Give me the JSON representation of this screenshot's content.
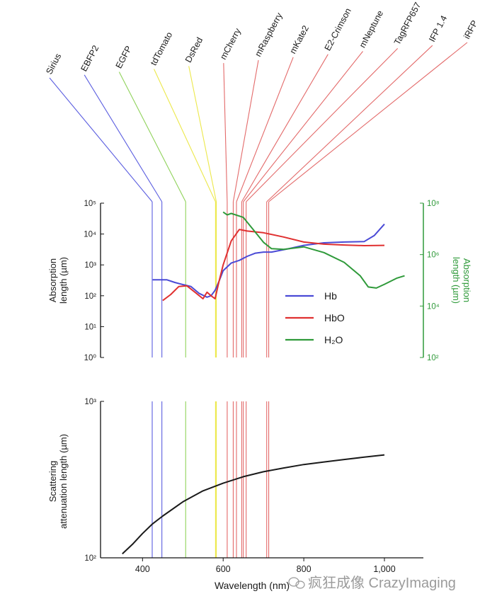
{
  "chart_data": [
    {
      "type": "line",
      "y_scale": "log",
      "ylabel_lines": [
        "Absorption",
        "length (µm)"
      ],
      "ylim": [
        1,
        100000
      ],
      "y_ticks": [
        {
          "v": 1,
          "label": "10⁰"
        },
        {
          "v": 10,
          "label": "10¹"
        },
        {
          "v": 100,
          "label": "10²"
        },
        {
          "v": 1000,
          "label": "10³"
        },
        {
          "v": 10000,
          "label": "10⁴"
        },
        {
          "v": 100000,
          "label": "10⁵"
        }
      ],
      "y2label_lines": [
        "Absorption",
        "length (µm)"
      ],
      "y2_scale": "log",
      "y2lim": [
        100,
        100000000
      ],
      "y2_ticks": [
        {
          "v": 100,
          "label": "10²"
        },
        {
          "v": 10000,
          "label": "10⁴"
        },
        {
          "v": 1000000,
          "label": "10⁶"
        },
        {
          "v": 100000000,
          "label": "10⁸"
        }
      ],
      "series": [
        {
          "name": "Hb",
          "color": "#4a4ad6",
          "axis": "left",
          "x": [
            425,
            445,
            460,
            480,
            500,
            520,
            540,
            560,
            570,
            580,
            590,
            600,
            620,
            640,
            660,
            680,
            700,
            720,
            760,
            800,
            850,
            900,
            950,
            975,
            1000
          ],
          "y": [
            330,
            330,
            330,
            270,
            230,
            200,
            120,
            90,
            100,
            150,
            300,
            650,
            1150,
            1400,
            1900,
            2400,
            2600,
            2600,
            3300,
            4300,
            5200,
            5500,
            5700,
            9000,
            21000
          ]
        },
        {
          "name": "HbO",
          "color": "#e03030",
          "axis": "left",
          "x": [
            450,
            470,
            490,
            510,
            530,
            550,
            560,
            570,
            580,
            590,
            600,
            620,
            640,
            660,
            700,
            750,
            800,
            850,
            900,
            950,
            1000
          ],
          "y": [
            70,
            110,
            200,
            210,
            130,
            80,
            130,
            100,
            80,
            300,
            1000,
            6000,
            14000,
            12500,
            11000,
            8000,
            5500,
            4700,
            4400,
            4200,
            4300
          ]
        },
        {
          "name": "H₂O",
          "color": "#2f9a3a",
          "axis": "right",
          "x": [
            600,
            610,
            620,
            650,
            700,
            720,
            750,
            800,
            850,
            900,
            940,
            960,
            980,
            1000,
            1030,
            1050
          ],
          "y": [
            45000000,
            35000000,
            40000000,
            28000000,
            3000000,
            1700000,
            1600000,
            2000000,
            1200000,
            500000,
            150000,
            55000,
            50000,
            70000,
            120000,
            150000
          ]
        }
      ]
    },
    {
      "type": "line",
      "y_scale": "log",
      "ylabel_lines": [
        "Scattering",
        "attenuation length (µm)"
      ],
      "ylim": [
        100,
        1000
      ],
      "y_ticks": [
        {
          "v": 100,
          "label": "10²"
        },
        {
          "v": 1000,
          "label": "10³"
        }
      ],
      "xlabel": "Wavelength (nm)",
      "x_ticks": [
        {
          "v": 400,
          "label": "400"
        },
        {
          "v": 600,
          "label": "600"
        },
        {
          "v": 800,
          "label": "800"
        },
        {
          "v": 1000,
          "label": "1,000"
        }
      ],
      "series": [
        {
          "color": "#1a1a1a",
          "x": [
            350,
            375,
            400,
            425,
            450,
            500,
            550,
            600,
            650,
            700,
            750,
            800,
            850,
            900,
            950,
            1000
          ],
          "y": [
            106,
            122,
            143,
            165,
            185,
            228,
            268,
            300,
            330,
            355,
            375,
            395,
            410,
            425,
            440,
            455
          ]
        }
      ]
    }
  ],
  "proteins": [
    {
      "name": "Sirius",
      "wavelength": 424,
      "color": "#5b5ee0"
    },
    {
      "name": "EBFP2",
      "wavelength": 448,
      "color": "#5b5ee0"
    },
    {
      "name": "EGFP",
      "wavelength": 507,
      "color": "#8fd25a"
    },
    {
      "name": "tdTomato",
      "wavelength": 581,
      "color": "#ece84a"
    },
    {
      "name": "DsRed",
      "wavelength": 583,
      "color": "#ece84a"
    },
    {
      "name": "mCherry",
      "wavelength": 610,
      "color": "#e36a6a"
    },
    {
      "name": "mRaspberry",
      "wavelength": 625,
      "color": "#e36a6a"
    },
    {
      "name": "mKate2",
      "wavelength": 633,
      "color": "#e36a6a"
    },
    {
      "name": "E2-Crimson",
      "wavelength": 646,
      "color": "#e36a6a"
    },
    {
      "name": "mNeptune",
      "wavelength": 650,
      "color": "#e36a6a"
    },
    {
      "name": "TagRFP657",
      "wavelength": 657,
      "color": "#e36a6a"
    },
    {
      "name": "IFP 1.4",
      "wavelength": 708,
      "color": "#e36a6a"
    },
    {
      "name": "iRFP",
      "wavelength": 713,
      "color": "#e36a6a"
    }
  ],
  "watermark": "疯狂成像 CrazyImaging"
}
